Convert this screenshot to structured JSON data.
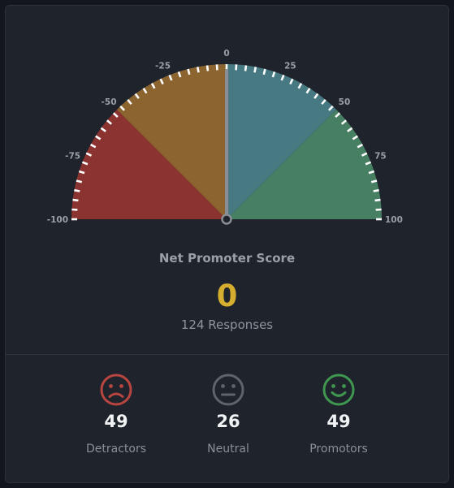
{
  "chart_data": {
    "type": "gauge",
    "title": "Net Promoter Score",
    "value": 0,
    "range": [
      -100,
      100
    ],
    "tick_labels": [
      "-100",
      "-75",
      "-50",
      "-25",
      "0",
      "25",
      "50",
      "75",
      "100"
    ],
    "segments": [
      {
        "from": -100,
        "to": -50,
        "color": "#8b3330"
      },
      {
        "from": -50,
        "to": 0,
        "color": "#8c6430"
      },
      {
        "from": 0,
        "to": 50,
        "color": "#477983"
      },
      {
        "from": 50,
        "to": 100,
        "color": "#477f63"
      }
    ],
    "colors": {
      "score": "#d5ad2f",
      "needle": "#8a8d93",
      "tick": "#ffffff",
      "tick_label": "#9aa0a8"
    }
  },
  "summary": {
    "title": "Net Promoter Score",
    "score": "0",
    "responses": "124 Responses"
  },
  "stats": [
    {
      "value": "49",
      "label": "Detractors",
      "icon": "frown-face-icon",
      "color": "#b8453f"
    },
    {
      "value": "26",
      "label": "Neutral",
      "icon": "neutral-face-icon",
      "color": "#5f636b"
    },
    {
      "value": "49",
      "label": "Promotors",
      "icon": "smile-face-icon",
      "color": "#3f9750"
    }
  ]
}
